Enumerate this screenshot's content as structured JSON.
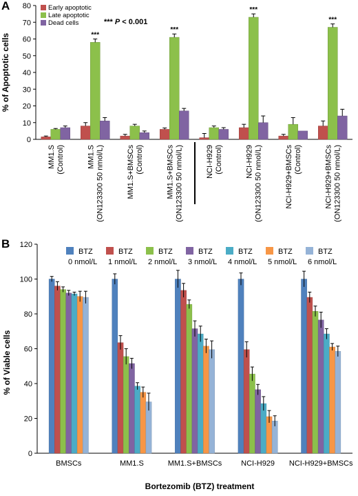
{
  "panels": {
    "a": "A",
    "b": "B"
  },
  "chart_data": [
    {
      "type": "bar",
      "ylabel": "% of Apoptotic cells",
      "ylim": [
        0,
        80
      ],
      "yticks": [
        0,
        10,
        20,
        30,
        40,
        50,
        60,
        70,
        80
      ],
      "annotation": "*** P < 0.001",
      "significance_marker": "***",
      "categories": [
        [
          "MM1.S",
          "(Control)"
        ],
        [
          "MM1.S",
          "(ON123300 50 nmol/L)"
        ],
        [
          "MM1.S+BMSCs",
          "(Control)"
        ],
        [
          "MM1.S+BMSCs",
          "(ON123300 50 nmol/L)"
        ],
        [
          "NCI-H929",
          "(Control)"
        ],
        [
          "NCI-H929",
          "(ON123300 50 nmol/L)"
        ],
        [
          "NCI-H929+BMSCs",
          "(Control)"
        ],
        [
          "NCI-H929+BMSCs",
          "(ON123300 50 nmol/L)"
        ]
      ],
      "series": [
        {
          "name": "Early apoptotic",
          "color": "#c0504d",
          "values": [
            1.5,
            8,
            2,
            6,
            1,
            7,
            2,
            8
          ],
          "errors": [
            0.5,
            2,
            1,
            0.8,
            2.5,
            2,
            1,
            3
          ]
        },
        {
          "name": "Late apoptotic",
          "color": "#8cc04b",
          "values": [
            6,
            58,
            8,
            61,
            7,
            73,
            9,
            67
          ],
          "errors": [
            0.5,
            2,
            1,
            2,
            1,
            2,
            4,
            2
          ]
        },
        {
          "name": "Dead cells",
          "color": "#8064a2",
          "values": [
            7,
            11,
            4,
            17,
            6,
            10,
            5,
            14
          ],
          "errors": [
            1,
            2,
            1,
            1.5,
            1,
            4,
            0,
            4
          ]
        }
      ],
      "significant": [
        false,
        true,
        false,
        true,
        false,
        true,
        false,
        true
      ],
      "legend_position": "top-left",
      "grid": false
    },
    {
      "type": "bar",
      "ylabel": "% of Viable cells",
      "xlabel": "Bortezomib (BTZ) treatment",
      "ylim": [
        0,
        120
      ],
      "yticks": [
        0,
        20,
        40,
        60,
        80,
        100,
        120
      ],
      "categories": [
        "BMSCs",
        "MM1.S",
        "MM1.S+BMSCs",
        "NCI-H929",
        "NCI-H929+BMSCs"
      ],
      "series": [
        {
          "name": "BTZ 0 nmol/L",
          "legend_lines": [
            "BTZ",
            "0 nmol/L"
          ],
          "color": "#4f81bd",
          "values": [
            100,
            100,
            100,
            100,
            100
          ],
          "errors": [
            1.5,
            3,
            5,
            3.5,
            4.5
          ]
        },
        {
          "name": "BTZ 1 nmol/L",
          "legend_lines": [
            "BTZ",
            "1 nmol/L"
          ],
          "color": "#c0504d",
          "values": [
            96,
            63.5,
            93.5,
            59.5,
            89.5
          ],
          "errors": [
            2.5,
            4,
            4,
            4.5,
            3
          ]
        },
        {
          "name": "BTZ 2 nmol/L",
          "legend_lines": [
            "BTZ",
            "2 nmol/L"
          ],
          "color": "#8cc04b",
          "values": [
            94,
            55.5,
            85.5,
            45.5,
            81.5
          ],
          "errors": [
            1.5,
            4.5,
            2.5,
            4,
            3
          ]
        },
        {
          "name": "BTZ 3 nmol/L",
          "legend_lines": [
            "BTZ",
            "3 nmol/L"
          ],
          "color": "#8064a2",
          "values": [
            92,
            51.5,
            71.5,
            36.5,
            76.5
          ],
          "errors": [
            1.5,
            3,
            4.5,
            3,
            4.5
          ]
        },
        {
          "name": "BTZ 4 nmol/L",
          "legend_lines": [
            "BTZ",
            "4 nmol/L"
          ],
          "color": "#4bacc6",
          "values": [
            91.5,
            38.5,
            68.5,
            28.5,
            68.5
          ],
          "errors": [
            1,
            2,
            4.5,
            4,
            3
          ]
        },
        {
          "name": "BTZ 5 nmol/L",
          "legend_lines": [
            "BTZ",
            "5 nmol/L"
          ],
          "color": "#f79646",
          "values": [
            90,
            35,
            61.5,
            21,
            61
          ],
          "errors": [
            3,
            3,
            4,
            3.5,
            2
          ]
        },
        {
          "name": "BTZ 6 nmol/L",
          "legend_lines": [
            "BTZ",
            "6 nmol/L"
          ],
          "color": "#95b3d7",
          "values": [
            89.5,
            29.5,
            59.5,
            18.5,
            58.5
          ],
          "errors": [
            3.5,
            5,
            5,
            3,
            3
          ]
        }
      ],
      "legend_position": "top",
      "grid": false
    }
  ]
}
